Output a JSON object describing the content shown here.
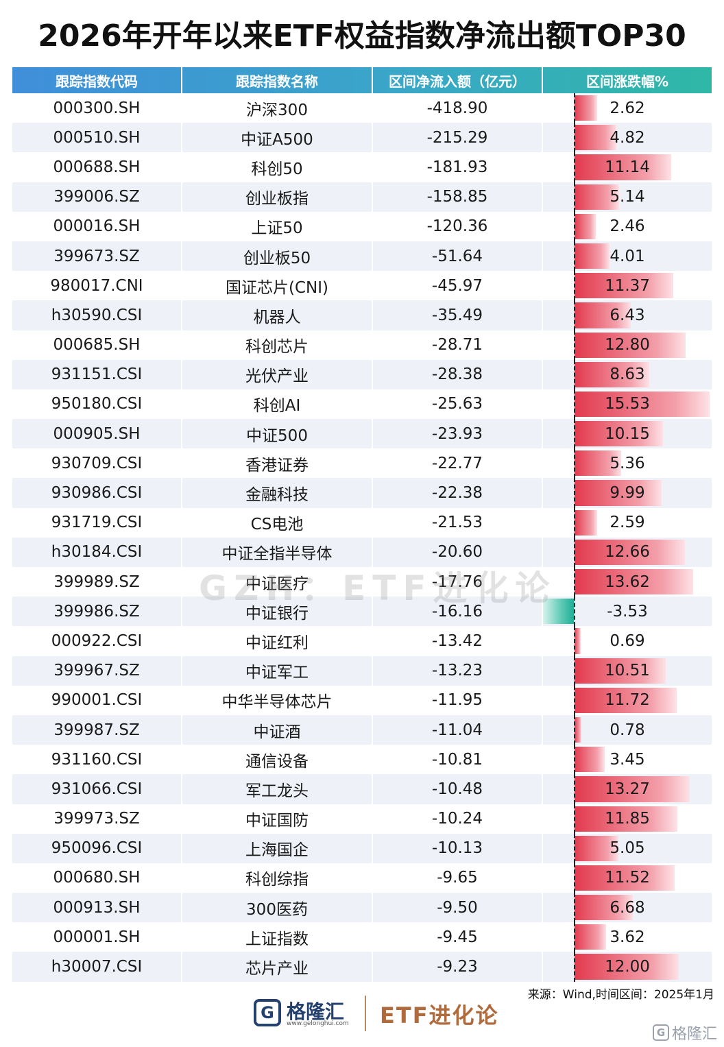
{
  "title": "2026年开年以来ETF权益指数净流出额TOP30",
  "headers": [
    "跟踪指数代码",
    "跟踪指数名称",
    "区间净流入额（亿元）",
    "区间涨跌幅%"
  ],
  "chart_data": {
    "type": "table",
    "columns": [
      "跟踪指数代码",
      "跟踪指数名称",
      "区间净流入额（亿元）",
      "区间涨跌幅%"
    ],
    "rows": [
      {
        "code": "000300.SH",
        "name": "沪深300",
        "flow": "-418.90",
        "chg": 2.62
      },
      {
        "code": "000510.SH",
        "name": "中证A500",
        "flow": "-215.29",
        "chg": 4.82
      },
      {
        "code": "000688.SH",
        "name": "科创50",
        "flow": "-181.93",
        "chg": 11.14
      },
      {
        "code": "399006.SZ",
        "name": "创业板指",
        "flow": "-158.85",
        "chg": 5.14
      },
      {
        "code": "000016.SH",
        "name": "上证50",
        "flow": "-120.36",
        "chg": 2.46
      },
      {
        "code": "399673.SZ",
        "name": "创业板50",
        "flow": "-51.64",
        "chg": 4.01
      },
      {
        "code": "980017.CNI",
        "name": "国证芯片(CNI)",
        "flow": "-45.97",
        "chg": 11.37
      },
      {
        "code": "h30590.CSI",
        "name": "机器人",
        "flow": "-35.49",
        "chg": 6.43
      },
      {
        "code": "000685.SH",
        "name": "科创芯片",
        "flow": "-28.71",
        "chg": 12.8
      },
      {
        "code": "931151.CSI",
        "name": "光伏产业",
        "flow": "-28.38",
        "chg": 8.63
      },
      {
        "code": "950180.CSI",
        "name": "科创AI",
        "flow": "-25.63",
        "chg": 15.53
      },
      {
        "code": "000905.SH",
        "name": "中证500",
        "flow": "-23.93",
        "chg": 10.15
      },
      {
        "code": "930709.CSI",
        "name": "香港证券",
        "flow": "-22.77",
        "chg": 5.36
      },
      {
        "code": "930986.CSI",
        "name": "金融科技",
        "flow": "-22.38",
        "chg": 9.99
      },
      {
        "code": "931719.CSI",
        "name": "CS电池",
        "flow": "-21.53",
        "chg": 2.59
      },
      {
        "code": "h30184.CSI",
        "name": "中证全指半导体",
        "flow": "-20.60",
        "chg": 12.66
      },
      {
        "code": "399989.SZ",
        "name": "中证医疗",
        "flow": "-17.76",
        "chg": 13.62
      },
      {
        "code": "399986.SZ",
        "name": "中证银行",
        "flow": "-16.16",
        "chg": -3.53
      },
      {
        "code": "000922.CSI",
        "name": "中证红利",
        "flow": "-13.42",
        "chg": 0.69
      },
      {
        "code": "399967.SZ",
        "name": "中证军工",
        "flow": "-13.23",
        "chg": 10.51
      },
      {
        "code": "990001.CSI",
        "name": "中华半导体芯片",
        "flow": "-11.95",
        "chg": 11.72
      },
      {
        "code": "399987.SZ",
        "name": "中证酒",
        "flow": "-11.04",
        "chg": 0.78
      },
      {
        "code": "931160.CSI",
        "name": "通信设备",
        "flow": "-10.81",
        "chg": 3.45
      },
      {
        "code": "931066.CSI",
        "name": "军工龙头",
        "flow": "-10.48",
        "chg": 13.27
      },
      {
        "code": "399973.SZ",
        "name": "中证国防",
        "flow": "-10.24",
        "chg": 11.85
      },
      {
        "code": "950096.CSI",
        "name": "上海国企",
        "flow": "-10.13",
        "chg": 5.05
      },
      {
        "code": "000680.SH",
        "name": "科创综指",
        "flow": "-9.65",
        "chg": 11.52
      },
      {
        "code": "000913.SH",
        "name": "300医药",
        "flow": "-9.50",
        "chg": 6.68
      },
      {
        "code": "000001.SH",
        "name": "上证指数",
        "flow": "-9.45",
        "chg": 3.62
      },
      {
        "code": "h30007.CSI",
        "name": "芯片产业",
        "flow": "-9.23",
        "chg": 12.0
      }
    ]
  },
  "colors": {
    "positive": "#e23a4e",
    "negative": "#1fae96",
    "header": "#3f8fd9"
  },
  "watermark": "GZH：ETF进化论",
  "source": "来源：Wind,时间区间：2025年1月",
  "footer": {
    "logo_icon": "G",
    "logo_name": "格隆汇",
    "logo_url": "www.gelonghui.com",
    "brand": "ETF进化论",
    "corner_icon": "G",
    "corner_text": "格隆汇"
  }
}
